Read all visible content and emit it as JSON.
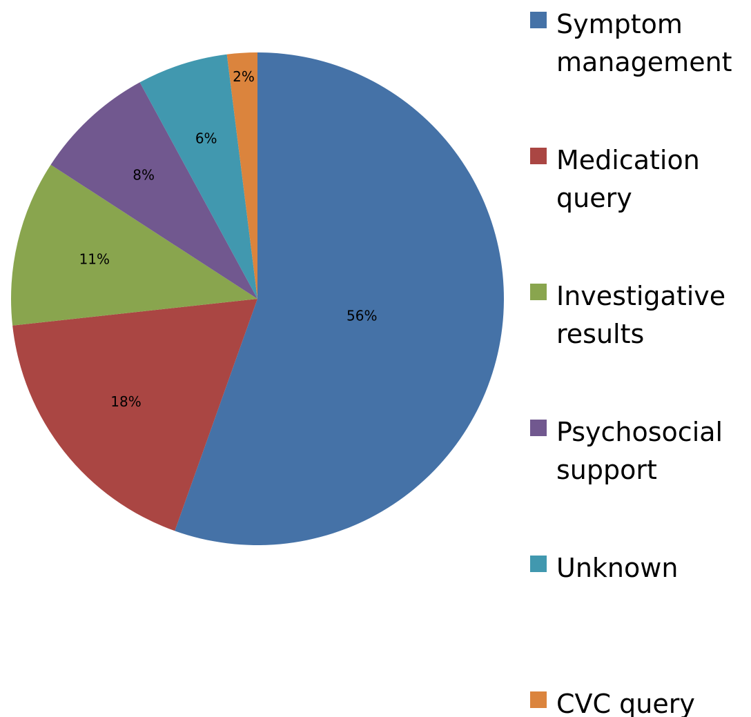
{
  "chart_data": {
    "type": "pie",
    "categories": [
      "Symptom management",
      "Medication query",
      "Investigative results",
      "Psychosocial support",
      "Unknown",
      "CVC query"
    ],
    "values": [
      56,
      18,
      11,
      8,
      6,
      2
    ],
    "value_labels": [
      "56%",
      "18%",
      "11%",
      "8%",
      "6%",
      "2%"
    ],
    "colors": [
      "#4572a7",
      "#aa4643",
      "#89a54e",
      "#71588f",
      "#4198af",
      "#db843d"
    ],
    "legend": "right"
  }
}
